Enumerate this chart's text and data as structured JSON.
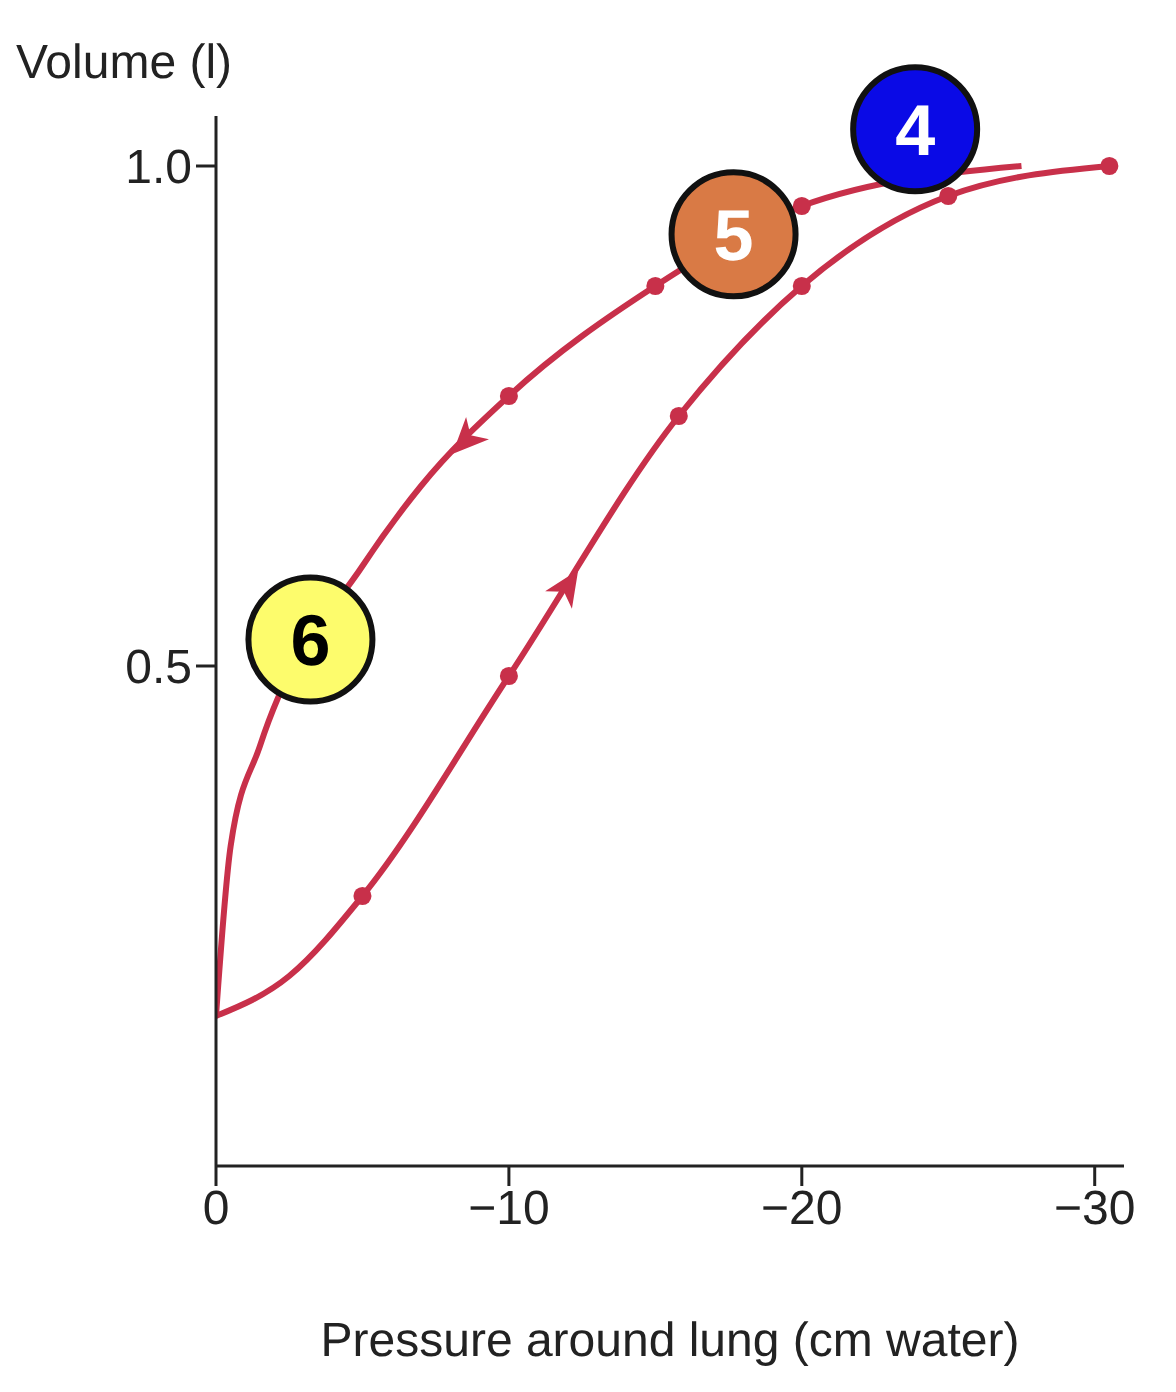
{
  "chart_data": {
    "type": "line",
    "xlabel": "Pressure around lung (cm water)",
    "ylabel": "Volume (l)",
    "xlim": [
      0,
      -31
    ],
    "ylim": [
      0,
      1.05
    ],
    "xticks": [
      0,
      {
        "value": -10,
        "label": "−10"
      },
      {
        "value": -20,
        "label": "−20"
      },
      {
        "value": -30,
        "label": "−30"
      }
    ],
    "yticks": [
      {
        "value": 0.5,
        "label": "0.5"
      },
      {
        "value": 1,
        "label": "1.0"
      }
    ],
    "series": [
      {
        "color": "#c8304a",
        "x": [
          0,
          -2.5,
          -5,
          -10,
          -15.8,
          -20,
          -25,
          -30.5
        ],
        "values": [
          0.15,
          0.19,
          0.27,
          0.49,
          0.75,
          0.88,
          0.97,
          1.0
        ]
      },
      {
        "color": "#c8304a",
        "x": [
          0,
          -0.5,
          -1.5,
          -5,
          -7,
          -10,
          -15,
          -20,
          -27.5
        ],
        "values": [
          0.15,
          0.32,
          0.42,
          0.6,
          0.68,
          0.77,
          0.88,
          0.96,
          1.0
        ]
      },
      {
        "type": "scatter",
        "color": "#c8304a",
        "marker": "circle",
        "x": [
          -5,
          -10,
          -15.8,
          -20,
          -25,
          -30.5,
          -20,
          -15,
          -10
        ],
        "values": [
          0.27,
          0.49,
          0.75,
          0.88,
          0.97,
          1.0,
          0.96,
          0.88,
          0.77
        ]
      }
    ],
    "annotations": [
      "4",
      "5",
      "6"
    ]
  }
}
